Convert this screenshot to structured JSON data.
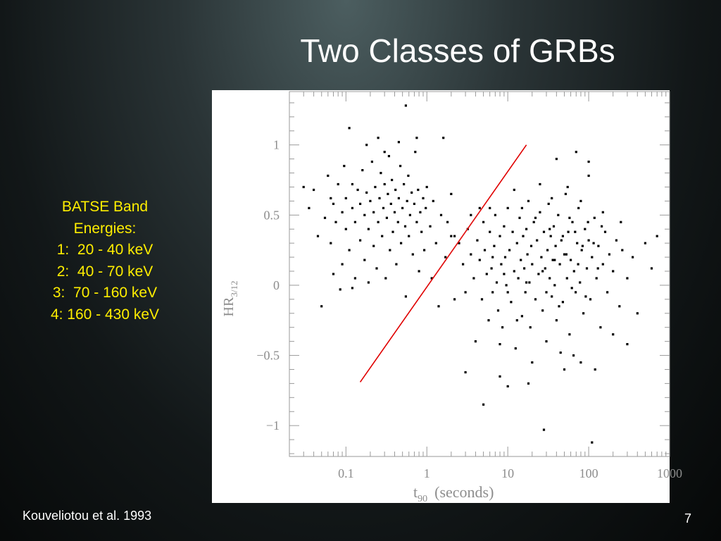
{
  "slide": {
    "title": "Two Classes of GRBs",
    "info_lines": [
      "BATSE Band",
      "Energies:",
      "1:  20 - 40 keV",
      "2:  40 - 70 keV",
      "3:  70 - 160 keV",
      "4: 160 - 430 keV"
    ],
    "citation": "Kouveliotou et al. 1993",
    "page_number": "7",
    "colors": {
      "info_text": "#ffee00",
      "divider_line": "#e00000",
      "points": "#000000",
      "axes": "#9a9a9a"
    }
  },
  "chart_data": {
    "type": "scatter",
    "xlabel": {
      "main": "t",
      "sub": "90",
      "rest": "(seconds)"
    },
    "ylabel": {
      "main": "HR",
      "sub": "3/12"
    },
    "x_scale": "log",
    "xlim": [
      0.02,
      1000
    ],
    "ylim": [
      -1.22,
      1.38
    ],
    "x_ticks": [
      {
        "value": 0.1,
        "label": "0.1"
      },
      {
        "value": 1,
        "label": "1"
      },
      {
        "value": 10,
        "label": "10"
      },
      {
        "value": 100,
        "label": "100"
      },
      {
        "value": 1000,
        "label": "1000"
      }
    ],
    "y_ticks": [
      {
        "value": 1,
        "label": "1"
      },
      {
        "value": 0.5,
        "label": "0.5"
      },
      {
        "value": 0,
        "label": "0"
      },
      {
        "value": -0.5,
        "label": "−0.5"
      },
      {
        "value": -1,
        "label": "−1"
      }
    ],
    "divider_line": {
      "x": [
        0.15,
        17
      ],
      "y": [
        -0.69,
        1.0
      ]
    },
    "series": [
      {
        "cluster": "short",
        "points": [
          [
            0.03,
            0.7
          ],
          [
            0.035,
            0.55
          ],
          [
            0.04,
            0.68
          ],
          [
            0.045,
            0.35
          ],
          [
            0.05,
            -0.15
          ],
          [
            0.055,
            0.48
          ],
          [
            0.06,
            0.78
          ],
          [
            0.065,
            0.3
          ],
          [
            0.07,
            0.58
          ],
          [
            0.07,
            0.08
          ],
          [
            0.075,
            0.45
          ],
          [
            0.08,
            0.72
          ],
          [
            0.085,
            -0.03
          ],
          [
            0.09,
            0.52
          ],
          [
            0.095,
            0.85
          ],
          [
            0.1,
            0.4
          ],
          [
            0.1,
            0.62
          ],
          [
            0.11,
            1.12
          ],
          [
            0.11,
            0.25
          ],
          [
            0.12,
            0.55
          ],
          [
            0.12,
            0.72
          ],
          [
            0.13,
            0.05
          ],
          [
            0.13,
            0.45
          ],
          [
            0.14,
            0.68
          ],
          [
            0.15,
            0.32
          ],
          [
            0.15,
            0.58
          ],
          [
            0.16,
            0.82
          ],
          [
            0.17,
            0.18
          ],
          [
            0.17,
            0.5
          ],
          [
            0.18,
            0.66
          ],
          [
            0.19,
            0.02
          ],
          [
            0.19,
            0.4
          ],
          [
            0.2,
            0.6
          ],
          [
            0.21,
            0.88
          ],
          [
            0.22,
            0.28
          ],
          [
            0.22,
            0.52
          ],
          [
            0.23,
            0.7
          ],
          [
            0.24,
            0.12
          ],
          [
            0.25,
            0.45
          ],
          [
            0.26,
            0.62
          ],
          [
            0.27,
            0.8
          ],
          [
            0.28,
            0.35
          ],
          [
            0.29,
            0.55
          ],
          [
            0.3,
            0.72
          ],
          [
            0.31,
            0.05
          ],
          [
            0.32,
            0.48
          ],
          [
            0.33,
            0.65
          ],
          [
            0.34,
            0.92
          ],
          [
            0.35,
            0.25
          ],
          [
            0.36,
            0.58
          ],
          [
            0.37,
            0.75
          ],
          [
            0.38,
            0.38
          ],
          [
            0.4,
            0.52
          ],
          [
            0.41,
            0.68
          ],
          [
            0.42,
            0.15
          ],
          [
            0.44,
            0.45
          ],
          [
            0.45,
            0.62
          ],
          [
            0.47,
            0.85
          ],
          [
            0.48,
            0.3
          ],
          [
            0.5,
            0.55
          ],
          [
            0.52,
            0.72
          ],
          [
            0.54,
            0.42
          ],
          [
            0.55,
            -0.08
          ],
          [
            0.57,
            0.6
          ],
          [
            0.59,
            0.78
          ],
          [
            0.6,
            0.35
          ],
          [
            0.62,
            0.5
          ],
          [
            0.65,
            0.66
          ],
          [
            0.67,
            0.22
          ],
          [
            0.7,
            0.58
          ],
          [
            0.72,
            0.95
          ],
          [
            0.75,
            0.45
          ],
          [
            0.78,
            0.68
          ],
          [
            0.8,
            0.1
          ],
          [
            0.83,
            0.52
          ],
          [
            0.86,
            0.38
          ],
          [
            0.9,
            0.62
          ],
          [
            0.93,
            0.25
          ],
          [
            0.97,
            0.55
          ],
          [
            1.0,
            0.7
          ],
          [
            1.1,
            0.42
          ],
          [
            1.15,
            0.05
          ],
          [
            1.2,
            0.6
          ],
          [
            1.3,
            0.3
          ],
          [
            1.4,
            -0.15
          ],
          [
            1.5,
            0.5
          ],
          [
            1.6,
            1.05
          ],
          [
            1.7,
            0.2
          ],
          [
            1.8,
            0.45
          ],
          [
            2.0,
            0.65
          ],
          [
            2.2,
            0.35
          ],
          [
            0.18,
            1.0
          ],
          [
            0.25,
            1.05
          ],
          [
            0.3,
            0.95
          ],
          [
            0.45,
            1.02
          ],
          [
            0.55,
            1.28
          ],
          [
            0.75,
            1.05
          ],
          [
            0.12,
            -0.02
          ],
          [
            0.09,
            0.15
          ],
          [
            0.065,
            0.62
          ]
        ]
      },
      {
        "cluster": "long",
        "points": [
          [
            2.5,
            0.3
          ],
          [
            2.8,
            0.15
          ],
          [
            3.0,
            -0.05
          ],
          [
            3.2,
            0.4
          ],
          [
            3.5,
            0.22
          ],
          [
            3.8,
            0.05
          ],
          [
            4.0,
            -0.4
          ],
          [
            4.2,
            0.32
          ],
          [
            4.5,
            0.18
          ],
          [
            4.8,
            -0.1
          ],
          [
            5.0,
            0.45
          ],
          [
            5.2,
            0.25
          ],
          [
            5.5,
            0.08
          ],
          [
            5.8,
            -0.25
          ],
          [
            6.0,
            0.38
          ],
          [
            6.3,
            0.12
          ],
          [
            6.5,
            -0.05
          ],
          [
            6.8,
            0.28
          ],
          [
            7.0,
            0.5
          ],
          [
            7.3,
            0.02
          ],
          [
            7.6,
            -0.18
          ],
          [
            8.0,
            0.35
          ],
          [
            8.3,
            0.15
          ],
          [
            8.6,
            -0.3
          ],
          [
            9.0,
            0.42
          ],
          [
            9.3,
            0.2
          ],
          [
            9.6,
            0.0
          ],
          [
            10.0,
            0.55
          ],
          [
            10.5,
            0.25
          ],
          [
            11.0,
            -0.12
          ],
          [
            11.5,
            0.38
          ],
          [
            12.0,
            0.1
          ],
          [
            12.5,
            -0.45
          ],
          [
            13.0,
            0.3
          ],
          [
            13.5,
            0.05
          ],
          [
            14.0,
            0.48
          ],
          [
            14.5,
            0.18
          ],
          [
            15.0,
            -0.22
          ],
          [
            15.5,
            0.35
          ],
          [
            16.0,
            0.12
          ],
          [
            16.5,
            -0.05
          ],
          [
            17.0,
            0.4
          ],
          [
            17.5,
            0.22
          ],
          [
            18.0,
            0.6
          ],
          [
            18.5,
            0.02
          ],
          [
            19.0,
            -0.3
          ],
          [
            19.5,
            0.28
          ],
          [
            20.0,
            0.15
          ],
          [
            21.0,
            0.45
          ],
          [
            22.0,
            -0.1
          ],
          [
            23.0,
            0.32
          ],
          [
            24.0,
            0.08
          ],
          [
            25.0,
            0.52
          ],
          [
            26.0,
            0.2
          ],
          [
            27.0,
            -0.18
          ],
          [
            28.0,
            0.38
          ],
          [
            29.0,
            0.12
          ],
          [
            30.0,
            -0.4
          ],
          [
            31.0,
            0.25
          ],
          [
            32.0,
            0.58
          ],
          [
            33.0,
            0.05
          ],
          [
            34.0,
            0.35
          ],
          [
            35.0,
            -0.08
          ],
          [
            36.0,
            0.18
          ],
          [
            37.0,
            0.42
          ],
          [
            38.0,
            0.0
          ],
          [
            39.0,
            0.28
          ],
          [
            40.0,
            -0.25
          ],
          [
            42.0,
            0.5
          ],
          [
            44.0,
            0.15
          ],
          [
            46.0,
            0.32
          ],
          [
            48.0,
            -0.12
          ],
          [
            50.0,
            0.22
          ],
          [
            52.0,
            0.65
          ],
          [
            54.0,
            0.05
          ],
          [
            56.0,
            0.38
          ],
          [
            58.0,
            -0.35
          ],
          [
            60.0,
            0.18
          ],
          [
            63.0,
            0.45
          ],
          [
            66.0,
            0.1
          ],
          [
            69.0,
            -0.05
          ],
          [
            72.0,
            0.3
          ],
          [
            75.0,
            0.55
          ],
          [
            78.0,
            0.02
          ],
          [
            82.0,
            0.25
          ],
          [
            86.0,
            -0.2
          ],
          [
            90.0,
            0.4
          ],
          [
            95.0,
            0.12
          ],
          [
            100.0,
            0.32
          ],
          [
            105.0,
            -0.1
          ],
          [
            110.0,
            0.2
          ],
          [
            118.0,
            0.48
          ],
          [
            125.0,
            0.05
          ],
          [
            132.0,
            0.28
          ],
          [
            140.0,
            -0.3
          ],
          [
            150.0,
            0.15
          ],
          [
            160.0,
            0.38
          ],
          [
            170.0,
            -0.05
          ],
          [
            180.0,
            0.22
          ],
          [
            200.0,
            0.1
          ],
          [
            220.0,
            0.32
          ],
          [
            240.0,
            -0.15
          ],
          [
            260.0,
            0.25
          ],
          [
            300.0,
            0.05
          ],
          [
            350.0,
            0.2
          ],
          [
            400.0,
            -0.2
          ],
          [
            500.0,
            0.3
          ],
          [
            600.0,
            0.12
          ],
          [
            700.0,
            0.35
          ],
          [
            6.0,
            0.55
          ],
          [
            8.0,
            -0.42
          ],
          [
            10.0,
            -0.05
          ],
          [
            12.0,
            0.68
          ],
          [
            15.0,
            0.55
          ],
          [
            20.0,
            -0.55
          ],
          [
            25.0,
            0.72
          ],
          [
            30.0,
            -0.05
          ],
          [
            35.0,
            0.62
          ],
          [
            45.0,
            -0.48
          ],
          [
            55.0,
            0.7
          ],
          [
            65.0,
            -0.5
          ],
          [
            80.0,
            0.6
          ],
          [
            100.0,
            0.78
          ],
          [
            120.0,
            -0.6
          ],
          [
            150.0,
            0.52
          ],
          [
            200.0,
            -0.35
          ],
          [
            250.0,
            0.45
          ],
          [
            300.0,
            -0.42
          ],
          [
            10.0,
            -0.72
          ],
          [
            18.0,
            -0.7
          ],
          [
            28.0,
            -1.03
          ],
          [
            3.0,
            -0.62
          ],
          [
            5.0,
            -0.85
          ],
          [
            8.0,
            -0.65
          ],
          [
            50.0,
            -0.6
          ],
          [
            80.0,
            -0.55
          ],
          [
            110.0,
            -1.12
          ],
          [
            40.0,
            0.9
          ],
          [
            70.0,
            0.95
          ],
          [
            100.0,
            0.88
          ],
          [
            2.0,
            0.35
          ],
          [
            2.2,
            -0.1
          ],
          [
            3.5,
            0.5
          ],
          [
            4.5,
            0.55
          ],
          [
            6.5,
            0.2
          ],
          [
            9.0,
            0.08
          ],
          [
            13.0,
            -0.25
          ],
          [
            17.0,
            0.02
          ],
          [
            22.0,
            0.48
          ],
          [
            27.0,
            0.1
          ],
          [
            33.0,
            0.4
          ],
          [
            38.0,
            0.18
          ],
          [
            43.0,
            -0.15
          ],
          [
            48.0,
            0.35
          ],
          [
            53.0,
            0.22
          ],
          [
            58.0,
            0.48
          ],
          [
            62.0,
            -0.02
          ],
          [
            68.0,
            0.38
          ],
          [
            74.0,
            0.15
          ],
          [
            84.0,
            0.28
          ],
          [
            92.0,
            -0.08
          ],
          [
            98.0,
            0.45
          ],
          [
            115.0,
            0.3
          ],
          [
            130.0,
            0.12
          ],
          [
            145.0,
            0.42
          ]
        ]
      }
    ]
  }
}
